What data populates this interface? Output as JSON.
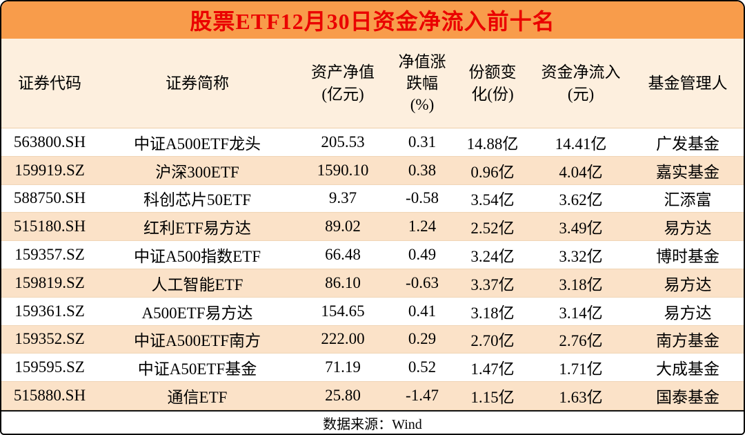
{
  "title": "股票ETF12月30日资金净流入前十名",
  "chart_data": {
    "type": "table",
    "title": "股票ETF12月30日资金净流入前十名",
    "columns": [
      "证券代码",
      "证券简称",
      "资产净值(亿元)",
      "净值涨跌幅(%)",
      "份额变化(份)",
      "资金净流入(元)",
      "基金管理人"
    ],
    "header_lines": [
      [
        "证券代码"
      ],
      [
        "证券简称"
      ],
      [
        "资产净值",
        "(亿元)"
      ],
      [
        "净值涨",
        "跌幅",
        "(%)"
      ],
      [
        "份额变",
        "化(份)"
      ],
      [
        "资金净流入",
        "(元)"
      ],
      [
        "基金管理人"
      ]
    ],
    "rows": [
      [
        "563800.SH",
        "中证A500ETF龙头",
        "205.53",
        "0.31",
        "14.88亿",
        "14.41亿",
        "广发基金"
      ],
      [
        "159919.SZ",
        "沪深300ETF",
        "1590.10",
        "0.38",
        "0.96亿",
        "4.04亿",
        "嘉实基金"
      ],
      [
        "588750.SH",
        "科创芯片50ETF",
        "9.37",
        "-0.58",
        "3.54亿",
        "3.62亿",
        "汇添富"
      ],
      [
        "515180.SH",
        "红利ETF易方达",
        "89.02",
        "1.24",
        "2.52亿",
        "3.49亿",
        "易方达"
      ],
      [
        "159357.SZ",
        "中证A500指数ETF",
        "66.48",
        "0.49",
        "3.24亿",
        "3.32亿",
        "博时基金"
      ],
      [
        "159819.SZ",
        "人工智能ETF",
        "86.10",
        "-0.63",
        "3.37亿",
        "3.18亿",
        "易方达"
      ],
      [
        "159361.SZ",
        "A500ETF易方达",
        "154.65",
        "0.41",
        "3.18亿",
        "3.14亿",
        "易方达"
      ],
      [
        "159352.SZ",
        "中证A500ETF南方",
        "222.00",
        "0.29",
        "2.70亿",
        "2.76亿",
        "南方基金"
      ],
      [
        "159595.SZ",
        "中证A50ETF基金",
        "71.19",
        "0.52",
        "1.47亿",
        "1.71亿",
        "大成基金"
      ],
      [
        "515880.SH",
        "通信ETF",
        "25.80",
        "-1.47",
        "1.15亿",
        "1.63亿",
        "国泰基金"
      ]
    ],
    "source": "数据来源：Wind"
  },
  "colors": {
    "title_bg": "#F89C4B",
    "title_text": "#EA0000",
    "header_bg": "#FDEFDE",
    "stripe_bg": "#FBE2C8",
    "border": "#000000"
  }
}
